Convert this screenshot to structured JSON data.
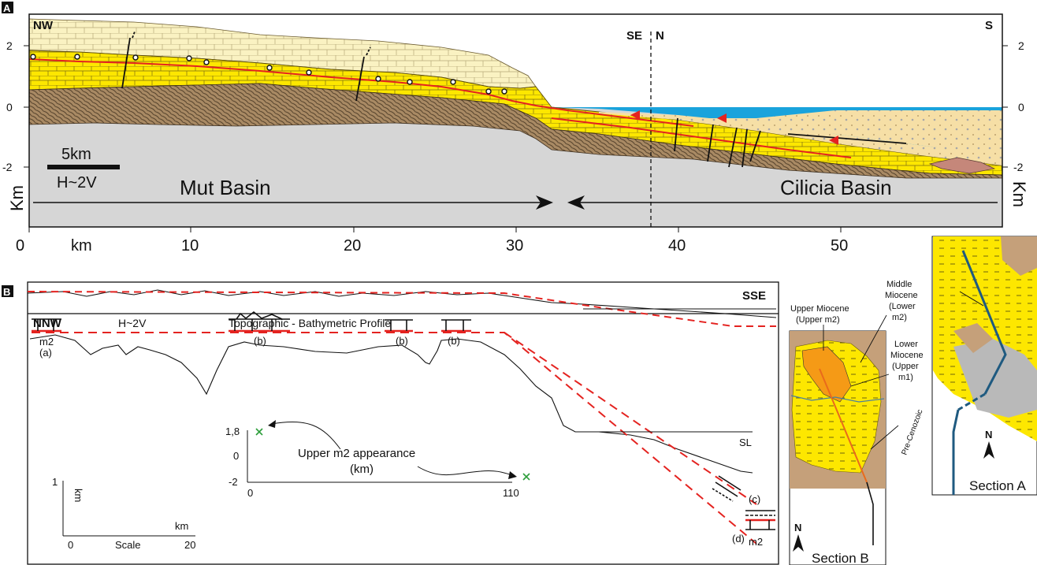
{
  "panel_a": {
    "label": "A",
    "left_direction": "NW",
    "right_direction": "S",
    "mid_direction_left": "SE",
    "mid_direction_right": "N",
    "left_axis_ticks": [
      "2",
      "0",
      "-2"
    ],
    "right_axis_ticks": [
      "2",
      "0",
      "-2"
    ],
    "left_unit": "Km",
    "right_unit": "Km",
    "scale_label": "5km",
    "exaggeration": "H~2V",
    "basin_left": "Mut Basin",
    "basin_right": "Cilicia Basin",
    "x_ticks": [
      "0",
      "km",
      "10",
      "20",
      "30",
      "40",
      "50"
    ],
    "colors": {
      "limestone": "#faf2c2",
      "yellow_unit": "#fde700",
      "brown_basement": "#a98a64",
      "grey_basement": "#d6d6d6",
      "sea": "#1aa3dc",
      "basin_fill": "#f6dfa6",
      "red_marker": "#e42320"
    }
  },
  "panel_b": {
    "label": "B",
    "left_direction": "NNW",
    "right_direction": "SSE",
    "exaggeration": "H~2V",
    "profile_title": "Topographic - Bathymetric Profile",
    "site_labels": [
      {
        "code": "m2",
        "sub": "(a)"
      },
      {
        "code": "(b)"
      },
      {
        "code": "(b)"
      },
      {
        "code": "(b)"
      },
      {
        "code": "(c)"
      },
      {
        "code": "(d)",
        "sub": "m2"
      }
    ],
    "sea_level": "SL",
    "inset": {
      "y_ticks": [
        "1,8",
        "0",
        "-2"
      ],
      "x_ticks": [
        "0",
        "110"
      ],
      "caption_line1": "Upper m2 appearance",
      "caption_line2": "(km)"
    },
    "scale": {
      "y_unit": "km",
      "y_value": "1",
      "x_unit": "km",
      "x_start": "0",
      "x_caption": "Scale",
      "x_end": "20"
    }
  },
  "map_b": {
    "upper_miocene_line1": "Upper Miocene",
    "upper_miocene_line2": "(Upper m2)",
    "middle_miocene": [
      "Middle",
      "Miocene",
      "(Lower",
      "m2)"
    ],
    "lower_miocene": [
      "Lower",
      "Miocene",
      "(Upper",
      "m1)"
    ],
    "pre_cenozoic": "Pre-Cenozoic",
    "north": "N",
    "caption": "Section B"
  },
  "map_a": {
    "north": "N",
    "caption": "Section A"
  }
}
